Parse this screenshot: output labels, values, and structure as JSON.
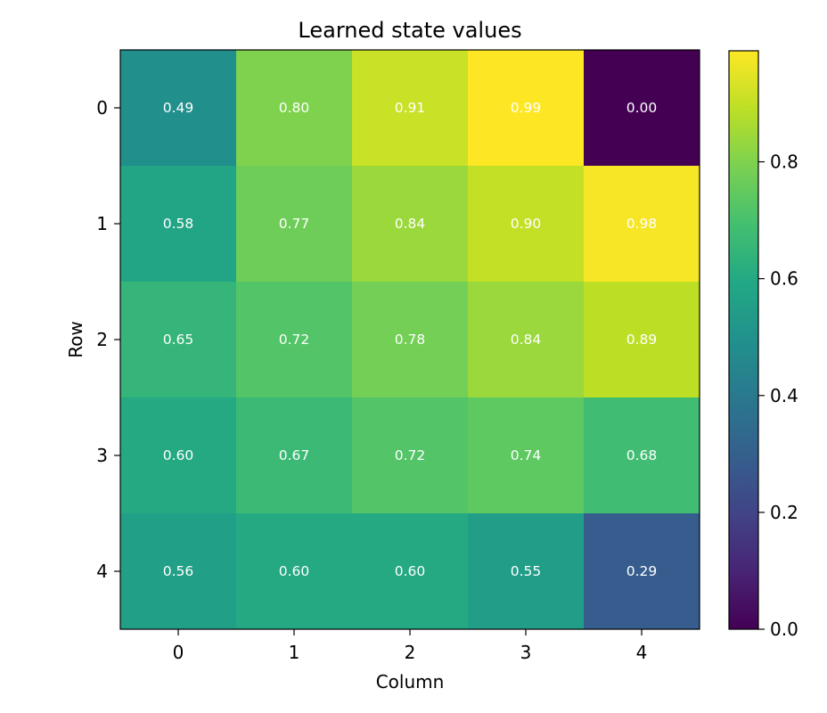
{
  "chart_data": {
    "type": "heatmap",
    "title": "Learned state values",
    "xlabel": "Column",
    "ylabel": "Row",
    "x_tick_labels": [
      "0",
      "1",
      "2",
      "3",
      "4"
    ],
    "y_tick_labels": [
      "0",
      "1",
      "2",
      "3",
      "4"
    ],
    "values": [
      [
        0.49,
        0.8,
        0.91,
        0.99,
        0.0
      ],
      [
        0.58,
        0.77,
        0.84,
        0.9,
        0.98
      ],
      [
        0.65,
        0.72,
        0.78,
        0.84,
        0.89
      ],
      [
        0.6,
        0.67,
        0.72,
        0.74,
        0.68
      ],
      [
        0.56,
        0.6,
        0.6,
        0.55,
        0.29
      ]
    ],
    "cell_labels": [
      [
        "0.49",
        "0.80",
        "0.91",
        "0.99",
        "0.00"
      ],
      [
        "0.58",
        "0.77",
        "0.84",
        "0.90",
        "0.98"
      ],
      [
        "0.65",
        "0.72",
        "0.78",
        "0.84",
        "0.89"
      ],
      [
        "0.60",
        "0.67",
        "0.72",
        "0.74",
        "0.68"
      ],
      [
        "0.56",
        "0.60",
        "0.60",
        "0.55",
        "0.29"
      ]
    ],
    "colormap": "viridis",
    "value_range": [
      0.0,
      0.99
    ],
    "colorbar": {
      "ticks": [
        0.0,
        0.2,
        0.4,
        0.6,
        0.8
      ],
      "tick_labels": [
        "0.0",
        "0.2",
        "0.4",
        "0.6",
        "0.8"
      ],
      "placement": "right"
    },
    "grid": false,
    "cell_label_color": "#ffffff",
    "frame_color": "#000000"
  }
}
